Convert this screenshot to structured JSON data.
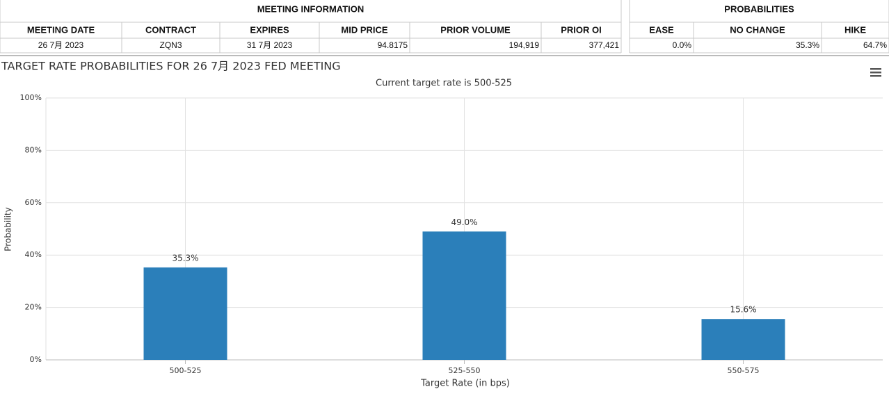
{
  "meeting_information": {
    "title": "MEETING INFORMATION",
    "columns": [
      "MEETING DATE",
      "CONTRACT",
      "EXPIRES",
      "MID PRICE",
      "PRIOR VOLUME",
      "PRIOR OI"
    ],
    "rows": [
      [
        "26 7月 2023",
        "ZQN3",
        "31 7月 2023",
        "94.8175",
        "194,919",
        "377,421"
      ]
    ]
  },
  "probabilities": {
    "title": "PROBABILITIES",
    "columns": [
      "EASE",
      "NO CHANGE",
      "HIKE"
    ],
    "rows": [
      [
        "0.0%",
        "35.3%",
        "64.7%"
      ]
    ]
  },
  "chart_data": {
    "type": "bar",
    "title": "TARGET RATE PROBABILITIES FOR 26 7月 2023 FED MEETING",
    "subtitle": "Current target rate is 500-525",
    "x_label": "Target Rate (in bps)",
    "y_label": "Probability",
    "categories": [
      "500-525",
      "525-550",
      "550-575"
    ],
    "values": [
      35.3,
      49.0,
      15.6
    ],
    "value_labels": [
      "35.3%",
      "49.0%",
      "15.6%"
    ],
    "color": "#2b7fba",
    "ylim": [
      0,
      100
    ],
    "yticks": [
      {
        "value": 0,
        "label": "0%"
      },
      {
        "value": 20,
        "label": "20%"
      },
      {
        "value": 40,
        "label": "40%"
      },
      {
        "value": 60,
        "label": "60%"
      },
      {
        "value": 80,
        "label": "80%"
      },
      {
        "value": 100,
        "label": "100%"
      }
    ],
    "grid": true
  }
}
